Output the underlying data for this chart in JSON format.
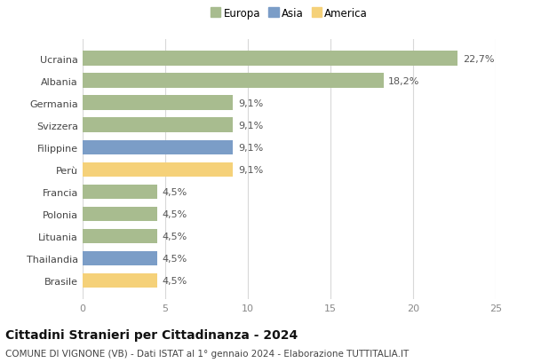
{
  "categories": [
    "Ucraina",
    "Albania",
    "Germania",
    "Svizzera",
    "Filippine",
    "Perù",
    "Francia",
    "Polonia",
    "Lituania",
    "Thailandia",
    "Brasile"
  ],
  "values": [
    22.7,
    18.2,
    9.1,
    9.1,
    9.1,
    9.1,
    4.5,
    4.5,
    4.5,
    4.5,
    4.5
  ],
  "labels": [
    "22,7%",
    "18,2%",
    "9,1%",
    "9,1%",
    "9,1%",
    "9,1%",
    "4,5%",
    "4,5%",
    "4,5%",
    "4,5%",
    "4,5%"
  ],
  "colors": [
    "#a8bc8f",
    "#a8bc8f",
    "#a8bc8f",
    "#a8bc8f",
    "#7b9dc7",
    "#f5d179",
    "#a8bc8f",
    "#a8bc8f",
    "#a8bc8f",
    "#7b9dc7",
    "#f5d179"
  ],
  "legend_colors": {
    "Europa": "#a8bc8f",
    "Asia": "#7b9dc7",
    "America": "#f5d179"
  },
  "xlim": [
    0,
    25
  ],
  "xticks": [
    0,
    5,
    10,
    15,
    20,
    25
  ],
  "title": "Cittadini Stranieri per Cittadinanza - 2024",
  "subtitle": "COMUNE DI VIGNONE (VB) - Dati ISTAT al 1° gennaio 2024 - Elaborazione TUTTITALIA.IT",
  "bg_color": "#ffffff",
  "grid_color": "#d8d8d8",
  "bar_height": 0.65,
  "label_fontsize": 8,
  "title_fontsize": 10,
  "subtitle_fontsize": 7.5,
  "tick_fontsize": 8,
  "legend_fontsize": 8.5
}
